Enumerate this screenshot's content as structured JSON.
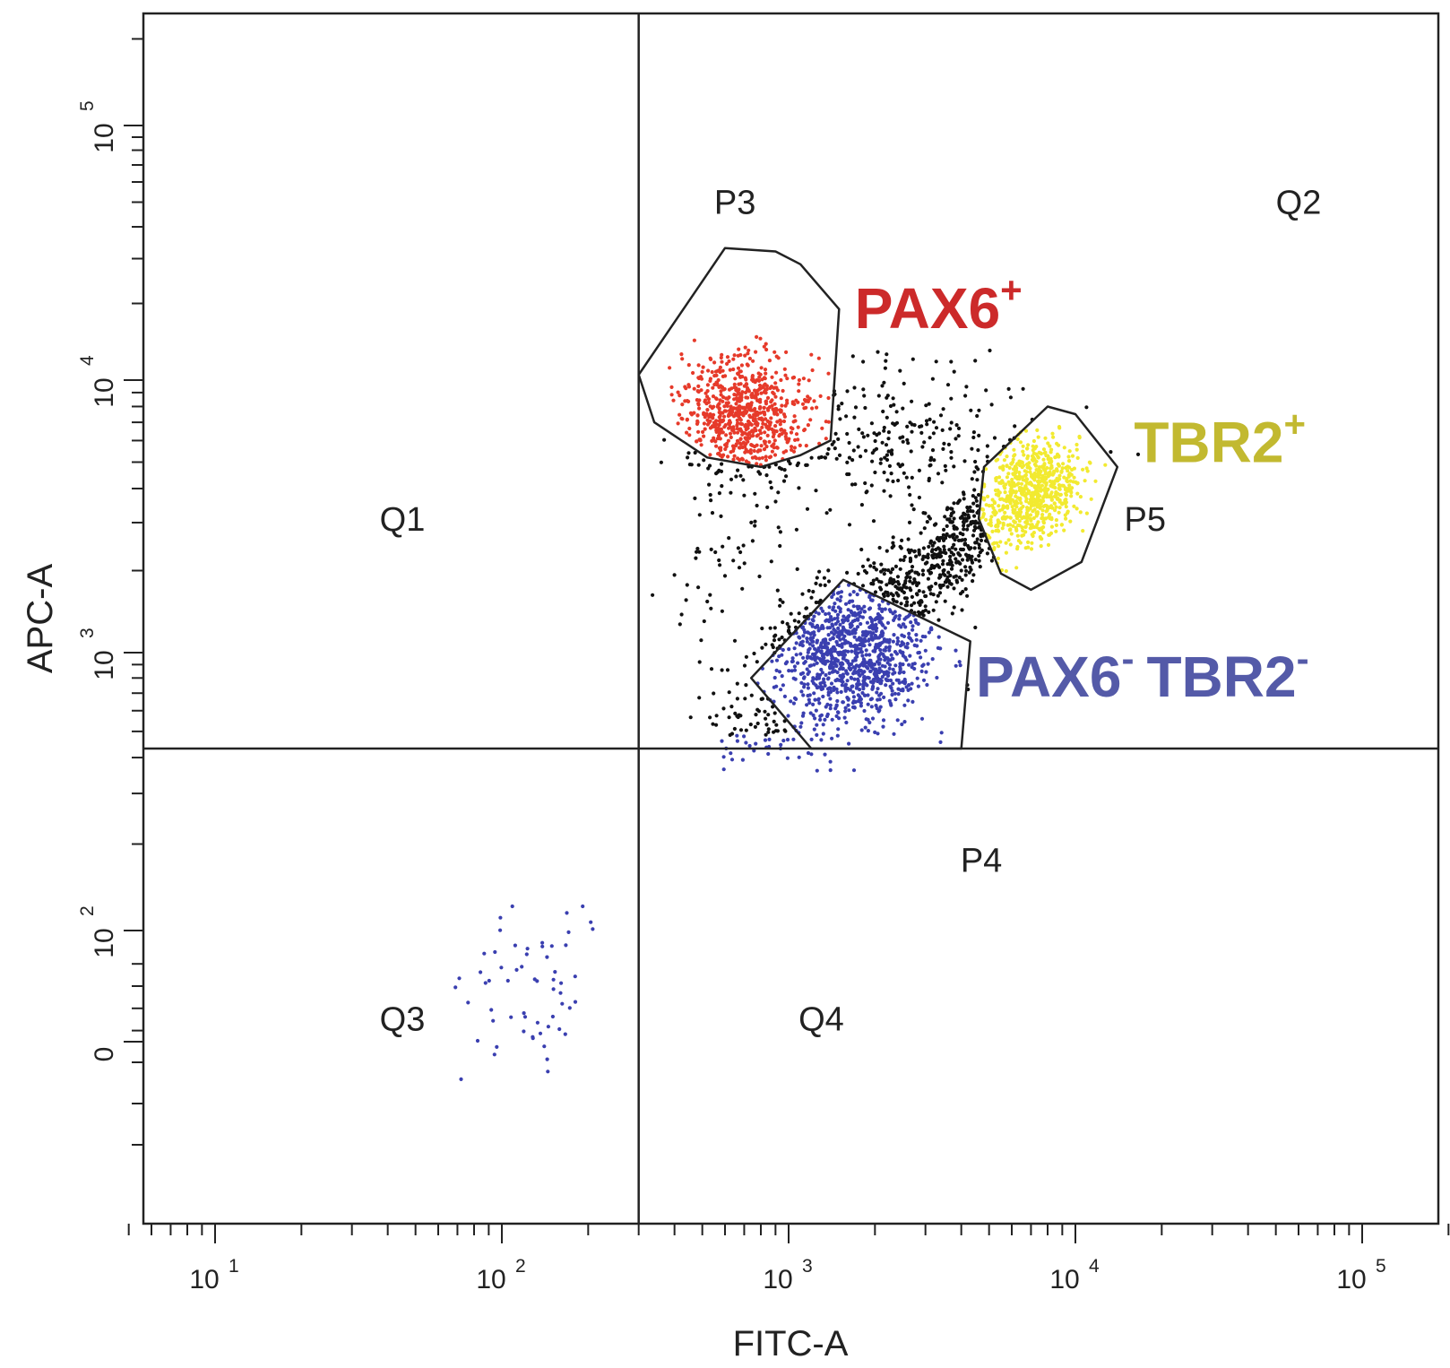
{
  "chart_data": {
    "type": "scatter",
    "title": "",
    "xlabel": "FITC-A",
    "ylabel": "APC-A",
    "x_scale": "log",
    "y_scale": "biexponential",
    "xlim": [
      5,
      250000
    ],
    "ylim": [
      -60,
      240000
    ],
    "x_ticks": [
      {
        "base": "10",
        "exp": "1",
        "value": 10
      },
      {
        "base": "10",
        "exp": "2",
        "value": 100
      },
      {
        "base": "10",
        "exp": "3",
        "value": 1000
      },
      {
        "base": "10",
        "exp": "4",
        "value": 10000
      },
      {
        "base": "10",
        "exp": "5",
        "value": 100000
      }
    ],
    "y_ticks": [
      {
        "base": "0",
        "exp": "",
        "value": 0
      },
      {
        "base": "10",
        "exp": "2",
        "value": 100
      },
      {
        "base": "10",
        "exp": "3",
        "value": 1000
      },
      {
        "base": "10",
        "exp": "4",
        "value": 10000
      },
      {
        "base": "10",
        "exp": "5",
        "value": 100000
      }
    ],
    "quadrant_divider": {
      "x": 300,
      "y": 430
    },
    "quadrant_labels": [
      {
        "text": "Q1",
        "x": 45,
        "y": 2800
      },
      {
        "text": "Q2",
        "x": 60000,
        "y": 45000
      },
      {
        "text": "Q3",
        "x": 45,
        "y": 10
      },
      {
        "text": "Q4",
        "x": 1300,
        "y": 10
      }
    ],
    "gates": [
      {
        "name": "P3",
        "label_at": {
          "x": 650,
          "y": 45000
        },
        "color": "#cc2a2a",
        "vertices": [
          [
            300,
            10500
          ],
          [
            600,
            33000
          ],
          [
            900,
            32000
          ],
          [
            1100,
            28500
          ],
          [
            1500,
            19000
          ],
          [
            1400,
            6000
          ],
          [
            1100,
            5300
          ],
          [
            800,
            4800
          ],
          [
            520,
            5200
          ],
          [
            340,
            7000
          ]
        ]
      },
      {
        "name": "P4",
        "label_at": {
          "x": 4700,
          "y": 160
        },
        "color": "#4f4fa8",
        "vertices": [
          [
            1550,
            1850
          ],
          [
            4300,
            1100
          ],
          [
            4000,
            430
          ],
          [
            1200,
            430
          ],
          [
            740,
            800
          ]
        ]
      },
      {
        "name": "P5",
        "label_at": {
          "x": 17500,
          "y": 2800
        },
        "color": "#e8d820",
        "vertices": [
          [
            8000,
            8000
          ],
          [
            10000,
            7500
          ],
          [
            14000,
            4800
          ],
          [
            10500,
            2150
          ],
          [
            7000,
            1700
          ],
          [
            5500,
            1950
          ],
          [
            4600,
            3100
          ],
          [
            4800,
            4800
          ]
        ]
      }
    ],
    "populations": [
      {
        "name": "PAX6",
        "sup": "+",
        "color": "#cc2a2a",
        "gate": "P3",
        "label_at": {
          "x": 1700,
          "y": 16000
        }
      },
      {
        "name": "TBR2",
        "sup": "+",
        "color": "#c2b930",
        "gate": "P5",
        "label_at": {
          "x": 16000,
          "y": 5000
        }
      },
      {
        "name": "PAX6",
        "sup": "-",
        "name2": "TBR2",
        "sup2": "-",
        "color": "#545aa8",
        "gate": "P4",
        "label_at": {
          "x": 4500,
          "y": 680
        }
      }
    ],
    "event_colors": {
      "ungated": "#111111",
      "P3": "#e63a2a",
      "P4": "#3a3fb0",
      "P5": "#f2ea30"
    },
    "grid": false,
    "legend": "none"
  }
}
